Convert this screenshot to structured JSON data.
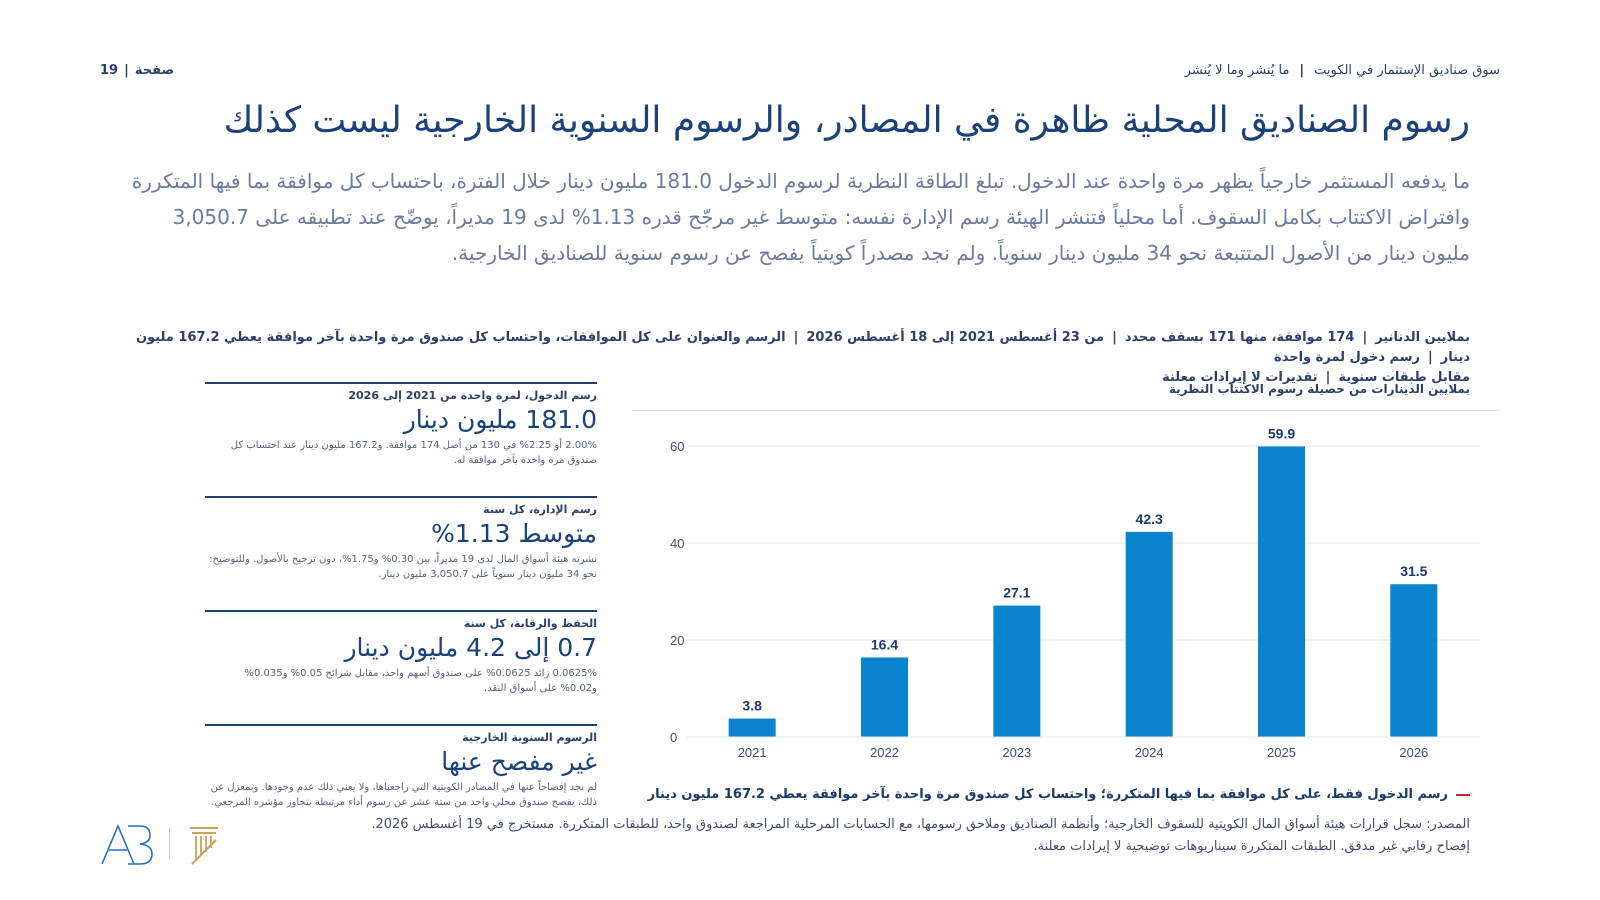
{
  "header": {
    "section": "سوق صناديق الإستثمار في الكويت",
    "subsection": "ما يُنشر وما لا يُنشر",
    "page_label": "صفحة",
    "page_number": "19"
  },
  "title": "رسوم الصناديق المحلية ظاهرة في المصادر، والرسوم السنوية الخارجية ليست كذلك",
  "subtitle": "ما يدفعه المستثمر خارجياً يظهر مرة واحدة عند الدخول. تبلغ الطاقة النظرية لرسوم الدخول 181.0 مليون دينار خلال الفترة، باحتساب كل موافقة بما فيها المتكررة وافتراض الاكتتاب بكامل السقوف. أما محلياً فتنشر الهيئة رسم الإدارة نفسه: متوسط غير مرجّح قدره 1.13% لدى 19 مديراً، يوضّح عند تطبيقه على 3,050.7 مليون دينار من الأصول المتتبعة نحو 34 مليون دينار سنوياً. ولم نجد مصدراً كويتياً يفصح عن رسوم سنوية للصناديق الخارجية.",
  "meta": {
    "items": [
      "بملايين الدنانير",
      "174 موافقة، منها 171 بسقف محدد",
      "من 23 أغسطس 2021 إلى 18 أغسطس 2026",
      "الرسم والعنوان على كل الموافقات، واحتساب كل صندوق مرة واحدة بآخر موافقة يعطي 167.2 مليون دينار",
      "رسم دخول لمرة واحدة",
      "مقابل طبقات سنوية",
      "تقديرات لا إيرادات معلنة"
    ]
  },
  "chart_label": "بملايين الدينارات من حصيلة رسوم الاكتتاب النظرية",
  "chart_data": {
    "type": "bar",
    "categories": [
      "2021",
      "2022",
      "2023",
      "2024",
      "2025",
      "2026"
    ],
    "values": [
      3.8,
      16.4,
      27.1,
      42.3,
      59.9,
      31.5
    ],
    "value_labels": [
      "3.8",
      "16.4",
      "27.1",
      "42.3",
      "59.9",
      "31.5"
    ],
    "ylim": [
      0,
      60
    ],
    "yticks": [
      0,
      20,
      40,
      60
    ],
    "ytick_labels": [
      "0",
      "20",
      "40",
      "60"
    ],
    "grid": true,
    "bar_color": "#0a84cf",
    "title": "",
    "xlabel": "",
    "ylabel": ""
  },
  "legend": {
    "text": "رسم الدخول فقط، على كل موافقة بما فيها المتكررة؛ واحتساب كل صندوق مرة واحدة بآخر موافقة يعطي 167.2 مليون دينار",
    "color": "#c0292b"
  },
  "cards": [
    {
      "title": "رسم الدخول، لمرة واحدة من 2021 إلى 2026",
      "value": "181.0 مليون دينار",
      "desc": "2.00% أو 2.25% في 130 من أصل 174 موافقة. و167.2 مليون دينار عند احتساب كل صندوق مرة واحدة بآخر موافقة له."
    },
    {
      "title": "رسم الإدارة، كل سنة",
      "value": "متوسط 1.13%",
      "desc": "نشرته هيئة أسواق المال لدى 19 مديراً، بين 0.30% و1.75%، دون ترجيح بالأصول. وللتوضيح: نحو 34 مليون دينار سنوياً على 3,050.7 مليون دينار."
    },
    {
      "title": "الحفظ والرقابة، كل سنة",
      "value": "0.7 إلى 4.2 مليون دينار",
      "desc": "0.0625% زائد 0.0625% على صندوق أسهم واحد، مقابل شرائح 0.05% و0.035% و0.02% على أسواق النقد."
    },
    {
      "title": "الرسوم السنوية الخارجية",
      "value": "غير مفصح عنها",
      "desc": "لم نجد إفصاحاً عنها في المصادر الكويتية التي راجعناها، ولا يعني ذلك عدم وجودها. وبمعزل عن ذلك، يفصح صندوق محلي واحد من ستة عشر عن رسوم أداء مرتبطة بتجاوز مؤشره المرجعي."
    }
  ],
  "source": "المصدر: سجل قرارات هيئة أسواق المال الكويتية للسقوف الخارجية؛ وأنظمة الصناديق وملاحق رسومها، مع الحسابات المرحلية المراجعة لصندوق واحد، للطبقات المتكررة. مستخرج في 19 أغسطس 2026. إفصاح رقابي غير مدقق. الطبقات المتكررة سيناريوهات توضيحية لا إيرادات معلنة.",
  "logos": {
    "left_logo": "AB",
    "right_logo": "pillar-logo-icon"
  },
  "colors": {
    "title": "#1a4178",
    "subtitle": "#6c7aa0",
    "accent_red": "#c0292b",
    "logo_blue": "#2a6fb8",
    "logo_gold": "#c8a35a"
  }
}
